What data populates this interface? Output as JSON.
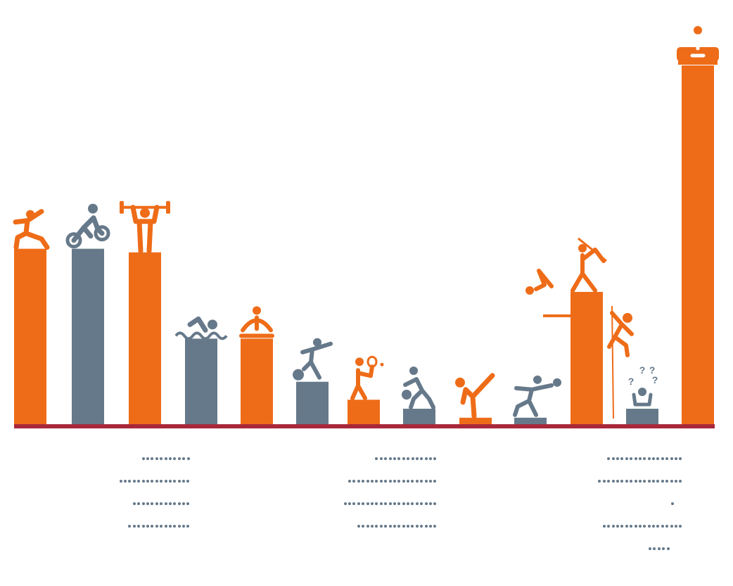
{
  "colors": {
    "orange": "#ee6c18",
    "slate": "#66798a",
    "baseline": "#a8283a",
    "dots": "#66798a"
  },
  "chart_data": {
    "type": "bar",
    "title": "",
    "xlabel": "",
    "ylabel": "",
    "ylim": [
      0,
      100
    ],
    "grid": false,
    "legend": "none",
    "categories": [
      {
        "icon": "running-person-icon",
        "value": 49,
        "color": "orange"
      },
      {
        "icon": "cycling-person-icon",
        "value": 49,
        "color": "slate"
      },
      {
        "icon": "weightlifting-person-icon",
        "value": 48,
        "color": "orange"
      },
      {
        "icon": "swimming-person-icon",
        "value": 24,
        "color": "slate"
      },
      {
        "icon": "yoga-person-icon",
        "value": 24,
        "color": "orange"
      },
      {
        "icon": "soccer-player-icon",
        "value": 12,
        "color": "slate"
      },
      {
        "icon": "tennis-player-icon",
        "value": 7,
        "color": "orange"
      },
      {
        "icon": "basketball-player-icon",
        "value": 4.5,
        "color": "slate"
      },
      {
        "icon": "martial-arts-kick-icon",
        "value": 2,
        "color": "orange"
      },
      {
        "icon": "volleyball-player-icon",
        "value": 2,
        "color": "slate"
      },
      {
        "icon": "extreme-sports-icon",
        "value": 37,
        "color": "orange"
      },
      {
        "icon": "confused-person-icon",
        "value": 4.5,
        "color": "slate"
      },
      {
        "icon": "couch-potato-icon",
        "value": 100,
        "color": "orange"
      }
    ]
  },
  "annotations": [
    {
      "rows": [
        11,
        16,
        13,
        14
      ],
      "align": "right"
    },
    {
      "rows": [
        14,
        20,
        21,
        18
      ],
      "align": "right"
    },
    {
      "rows": [
        17,
        19,
        1,
        18,
        5
      ],
      "align": "right"
    }
  ]
}
